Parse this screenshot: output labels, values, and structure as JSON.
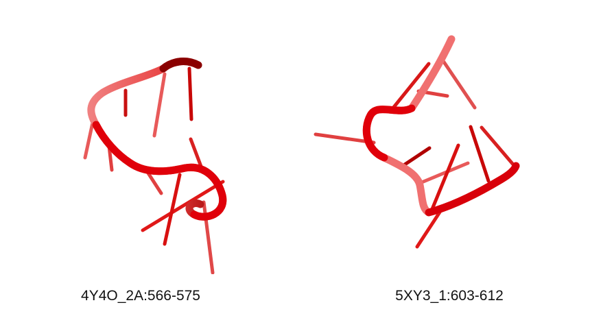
{
  "structures": [
    {
      "label": "4Y4O_2A:566-575",
      "color": "#e8000b"
    },
    {
      "label": "5XY3_1:603-612",
      "color": "#e8000b"
    }
  ]
}
